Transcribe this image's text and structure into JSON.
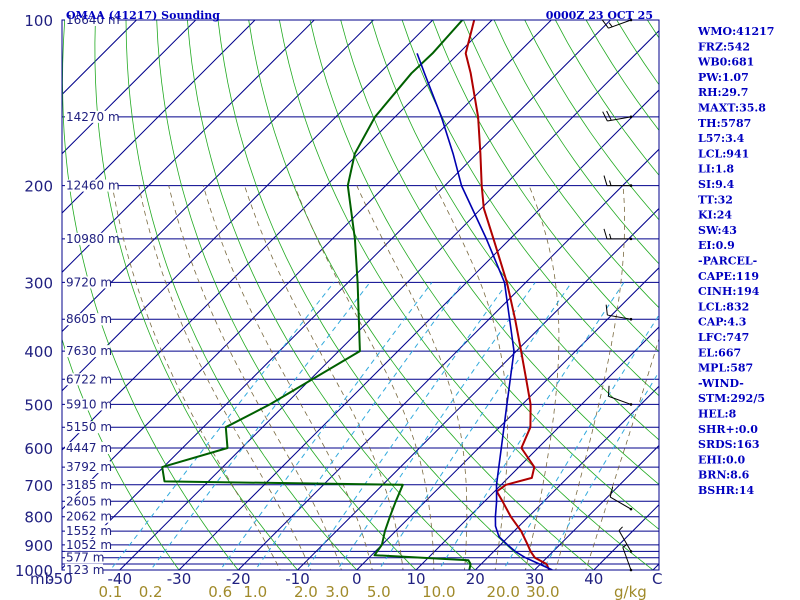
{
  "header": {
    "station": "OMAA (41217) Sounding",
    "time": "0000Z 23 OCT 25"
  },
  "indices": [
    "WMO:41217",
    "FRZ:542",
    "WB0:681",
    "PW:1.07",
    "RH:29.7",
    "MAXT:35.8",
    "TH:5787",
    "L57:3.4",
    "LCL:941",
    "LI:1.8",
    "SI:9.4",
    "TT:32",
    "KI:24",
    "SW:43",
    "EI:0.9",
    "-PARCEL-",
    "CAPE:119",
    "CINH:194",
    "LCL:832",
    "CAP:4.3",
    "LFC:747",
    "EL:667",
    "MPL:587",
    "-WIND-",
    "STM:292/5",
    "HEL:8",
    "SHR+:0.0",
    "SRDS:163",
    "EHI:0.0",
    "BRN:8.6",
    "BSHR:14"
  ],
  "colors": {
    "isobar": "#00008b",
    "isotherm": "#00008b",
    "dry_adiabat": "#22aa22",
    "moist_adiabat": "#7a6a40",
    "mixing_ratio": "#33aadd",
    "temperature": "#b00000",
    "dewpoint": "#006000",
    "parcel": "#0000b0",
    "axis_text": "#202080",
    "mixing_text": "#a08a2a",
    "header_text": "#0000c0"
  },
  "chart_data": {
    "type": "line",
    "diagram": "skew-t log-p",
    "pressure_unit": "mb",
    "temperature_unit": "°C",
    "mixing_ratio_unit": "g/kg",
    "pressure_range": [
      1000,
      100
    ],
    "temperature_range_at_1000": [
      -50,
      50
    ],
    "pressure_labels": [
      {
        "p": 100,
        "label": "100"
      },
      {
        "p": 200,
        "label": "200"
      },
      {
        "p": 300,
        "label": "300"
      },
      {
        "p": 400,
        "label": "400"
      },
      {
        "p": 500,
        "label": "500"
      },
      {
        "p": 600,
        "label": "600"
      },
      {
        "p": 700,
        "label": "700"
      },
      {
        "p": 800,
        "label": "800"
      },
      {
        "p": 900,
        "label": "900"
      },
      {
        "p": 1000,
        "label": "1000"
      }
    ],
    "mandatory_levels": [
      100,
      150,
      200,
      250,
      300,
      350,
      400,
      450,
      500,
      550,
      600,
      650,
      700,
      750,
      800,
      850,
      900,
      925,
      950,
      975,
      1000
    ],
    "height_labels": [
      {
        "p": 100,
        "label": "16640 m"
      },
      {
        "p": 150,
        "label": "14270 m"
      },
      {
        "p": 200,
        "label": "12460 m"
      },
      {
        "p": 250,
        "label": "10980 m"
      },
      {
        "p": 300,
        "label": "9720 m"
      },
      {
        "p": 350,
        "label": "8605 m"
      },
      {
        "p": 400,
        "label": "7630 m"
      },
      {
        "p": 450,
        "label": "6722 m"
      },
      {
        "p": 500,
        "label": "5910 m"
      },
      {
        "p": 550,
        "label": "5150 m"
      },
      {
        "p": 600,
        "label": "4447 m"
      },
      {
        "p": 650,
        "label": "3792 m"
      },
      {
        "p": 700,
        "label": "3185 m"
      },
      {
        "p": 750,
        "label": "2605 m"
      },
      {
        "p": 800,
        "label": "2062 m"
      },
      {
        "p": 850,
        "label": "1552 m"
      },
      {
        "p": 900,
        "label": "1052 m"
      },
      {
        "p": 950,
        "label": "577 m"
      },
      {
        "p": 1000,
        "label": "123 m"
      }
    ],
    "temperature_ticks": [
      {
        "t": -50,
        "label": "-50"
      },
      {
        "t": -40,
        "label": "-40"
      },
      {
        "t": -30,
        "label": "-30"
      },
      {
        "t": -20,
        "label": "-20"
      },
      {
        "t": -10,
        "label": "-10"
      },
      {
        "t": 0,
        "label": "0"
      },
      {
        "t": 10,
        "label": "10"
      },
      {
        "t": 20,
        "label": "20"
      },
      {
        "t": 30,
        "label": "30"
      },
      {
        "t": 40,
        "label": "40"
      }
    ],
    "corner_label": "C",
    "mixing_ratio_ticks": [
      {
        "w": 0.1,
        "label": "0.1"
      },
      {
        "w": 0.2,
        "label": "0.2"
      },
      {
        "w": 0.6,
        "label": "0.6"
      },
      {
        "w": 1.0,
        "label": "1.0"
      },
      {
        "w": 2.0,
        "label": "2.0"
      },
      {
        "w": 3.0,
        "label": "3.0"
      },
      {
        "w": 5.0,
        "label": "5.0"
      },
      {
        "w": 10.0,
        "label": "10.0"
      },
      {
        "w": 20.0,
        "label": "20.0"
      },
      {
        "w": 30.0,
        "label": "30.0"
      }
    ],
    "series": [
      {
        "key": "temperature",
        "points": [
          {
            "p": 1000,
            "t": 32.5
          },
          {
            "p": 975,
            "t": 31.0
          },
          {
            "p": 950,
            "t": 28.0
          },
          {
            "p": 925,
            "t": 26.2
          },
          {
            "p": 900,
            "t": 24.6
          },
          {
            "p": 850,
            "t": 21.2
          },
          {
            "p": 800,
            "t": 17.0
          },
          {
            "p": 750,
            "t": 13.0
          },
          {
            "p": 720,
            "t": 10.4
          },
          {
            "p": 700,
            "t": 10.8
          },
          {
            "p": 680,
            "t": 14.0
          },
          {
            "p": 650,
            "t": 12.6
          },
          {
            "p": 600,
            "t": 7.2
          },
          {
            "p": 550,
            "t": 5.2
          },
          {
            "p": 500,
            "t": 1.4
          },
          {
            "p": 450,
            "t": -3.6
          },
          {
            "p": 400,
            "t": -9.2
          },
          {
            "p": 350,
            "t": -15.6
          },
          {
            "p": 300,
            "t": -23.2
          },
          {
            "p": 250,
            "t": -32.8
          },
          {
            "p": 220,
            "t": -39.6
          },
          {
            "p": 200,
            "t": -43.8
          },
          {
            "p": 175,
            "t": -49.4
          },
          {
            "p": 150,
            "t": -56.0
          },
          {
            "p": 125,
            "t": -64.6
          },
          {
            "p": 115,
            "t": -68.8
          },
          {
            "p": 100,
            "t": -73.0
          }
        ]
      },
      {
        "key": "dewpoint",
        "points": [
          {
            "p": 1000,
            "t": 19.0
          },
          {
            "p": 975,
            "t": 18.2
          },
          {
            "p": 960,
            "t": 17.2
          },
          {
            "p": 940,
            "t": 0.5
          },
          {
            "p": 900,
            "t": 0.0
          },
          {
            "p": 850,
            "t": -1.8
          },
          {
            "p": 800,
            "t": -3.4
          },
          {
            "p": 750,
            "t": -5.0
          },
          {
            "p": 700,
            "t": -6.6
          },
          {
            "p": 690,
            "t": -47.4
          },
          {
            "p": 650,
            "t": -50.2
          },
          {
            "p": 600,
            "t": -42.4
          },
          {
            "p": 550,
            "t": -46.2
          },
          {
            "p": 500,
            "t": -42.6
          },
          {
            "p": 400,
            "t": -36.4
          },
          {
            "p": 300,
            "t": -48.4
          },
          {
            "p": 250,
            "t": -56.2
          },
          {
            "p": 200,
            "t": -66.4
          },
          {
            "p": 175,
            "t": -70.6
          },
          {
            "p": 150,
            "t": -73.4
          },
          {
            "p": 125,
            "t": -74.6
          },
          {
            "p": 115,
            "t": -74.4
          },
          {
            "p": 100,
            "t": -75.0
          }
        ]
      },
      {
        "key": "parcel",
        "points": [
          {
            "p": 1000,
            "t": 33.0
          },
          {
            "p": 975,
            "t": 29.8
          },
          {
            "p": 950,
            "t": 26.4
          },
          {
            "p": 925,
            "t": 23.6
          },
          {
            "p": 900,
            "t": 21.2
          },
          {
            "p": 870,
            "t": 18.4
          },
          {
            "p": 832,
            "t": 16.0
          },
          {
            "p": 800,
            "t": 14.4
          },
          {
            "p": 750,
            "t": 12.0
          },
          {
            "p": 700,
            "t": 9.2
          },
          {
            "p": 600,
            "t": 3.8
          },
          {
            "p": 500,
            "t": -2.6
          },
          {
            "p": 400,
            "t": -10.4
          },
          {
            "p": 300,
            "t": -23.6
          },
          {
            "p": 250,
            "t": -34.0
          },
          {
            "p": 200,
            "t": -47.2
          },
          {
            "p": 175,
            "t": -54.0
          },
          {
            "p": 150,
            "t": -62.2
          },
          {
            "p": 125,
            "t": -72.4
          },
          {
            "p": 115,
            "t": -77.0
          }
        ]
      }
    ],
    "wind_barbs": [
      {
        "p": 1000,
        "dir": 340,
        "spd": 5
      },
      {
        "p": 925,
        "dir": 330,
        "spd": 5
      },
      {
        "p": 775,
        "dir": 300,
        "spd": 10
      },
      {
        "p": 500,
        "dir": 290,
        "spd": 10
      },
      {
        "p": 350,
        "dir": 280,
        "spd": 10
      },
      {
        "p": 250,
        "dir": 270,
        "spd": 15
      },
      {
        "p": 200,
        "dir": 270,
        "spd": 15
      },
      {
        "p": 150,
        "dir": 260,
        "spd": 20
      },
      {
        "p": 100,
        "dir": 250,
        "spd": 15
      }
    ]
  }
}
